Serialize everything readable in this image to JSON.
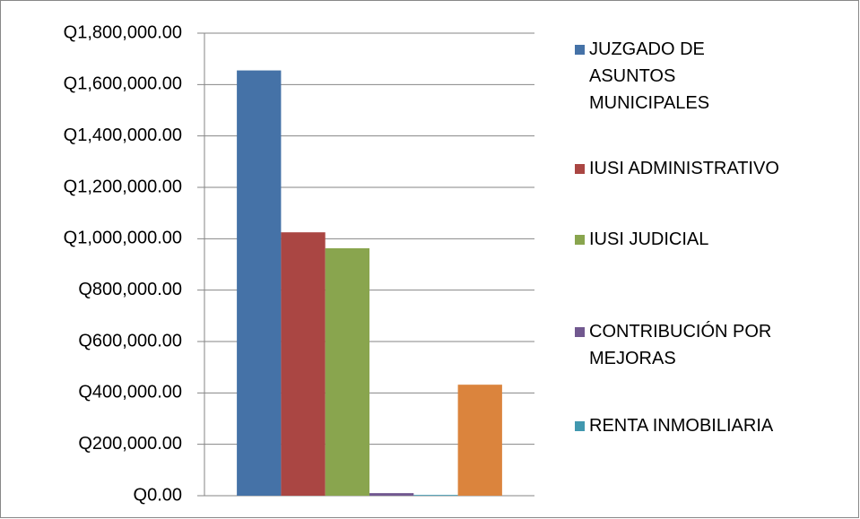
{
  "chart_data": {
    "type": "bar",
    "series": [
      {
        "name": "JUZGADO DE ASUNTOS MUNICIPALES",
        "color": "#4572a7",
        "values": [
          1655000
        ]
      },
      {
        "name": "IUSI ADMINISTRATIVO",
        "color": "#aa4643",
        "values": [
          1025000
        ]
      },
      {
        "name": "IUSI JUDICIAL",
        "color": "#89a54e",
        "values": [
          963000
        ]
      },
      {
        "name": "CONTRIBUCIÓN POR MEJORAS",
        "color": "#71588f",
        "values": [
          10000
        ]
      },
      {
        "name": "RENTA INMOBILIARIA",
        "color": "#4198af",
        "values": [
          3000
        ]
      },
      {
        "name": null,
        "color": "#db843d",
        "values": [
          432000
        ]
      }
    ],
    "ylim": [
      0,
      1800000
    ],
    "yticks": [
      {
        "value": 0,
        "label": "Q0.00"
      },
      {
        "value": 200000,
        "label": "Q200,000.00"
      },
      {
        "value": 400000,
        "label": "Q400,000.00"
      },
      {
        "value": 600000,
        "label": "Q600,000.00"
      },
      {
        "value": 800000,
        "label": "Q800,000.00"
      },
      {
        "value": 1000000,
        "label": "Q1,000,000.00"
      },
      {
        "value": 1200000,
        "label": "Q1,200,000.00"
      },
      {
        "value": 1400000,
        "label": "Q1,400,000.00"
      },
      {
        "value": 1600000,
        "label": "Q1,600,000.00"
      },
      {
        "value": 1800000,
        "label": "Q1,800,000.00"
      }
    ],
    "grid": true,
    "legend": "right"
  }
}
